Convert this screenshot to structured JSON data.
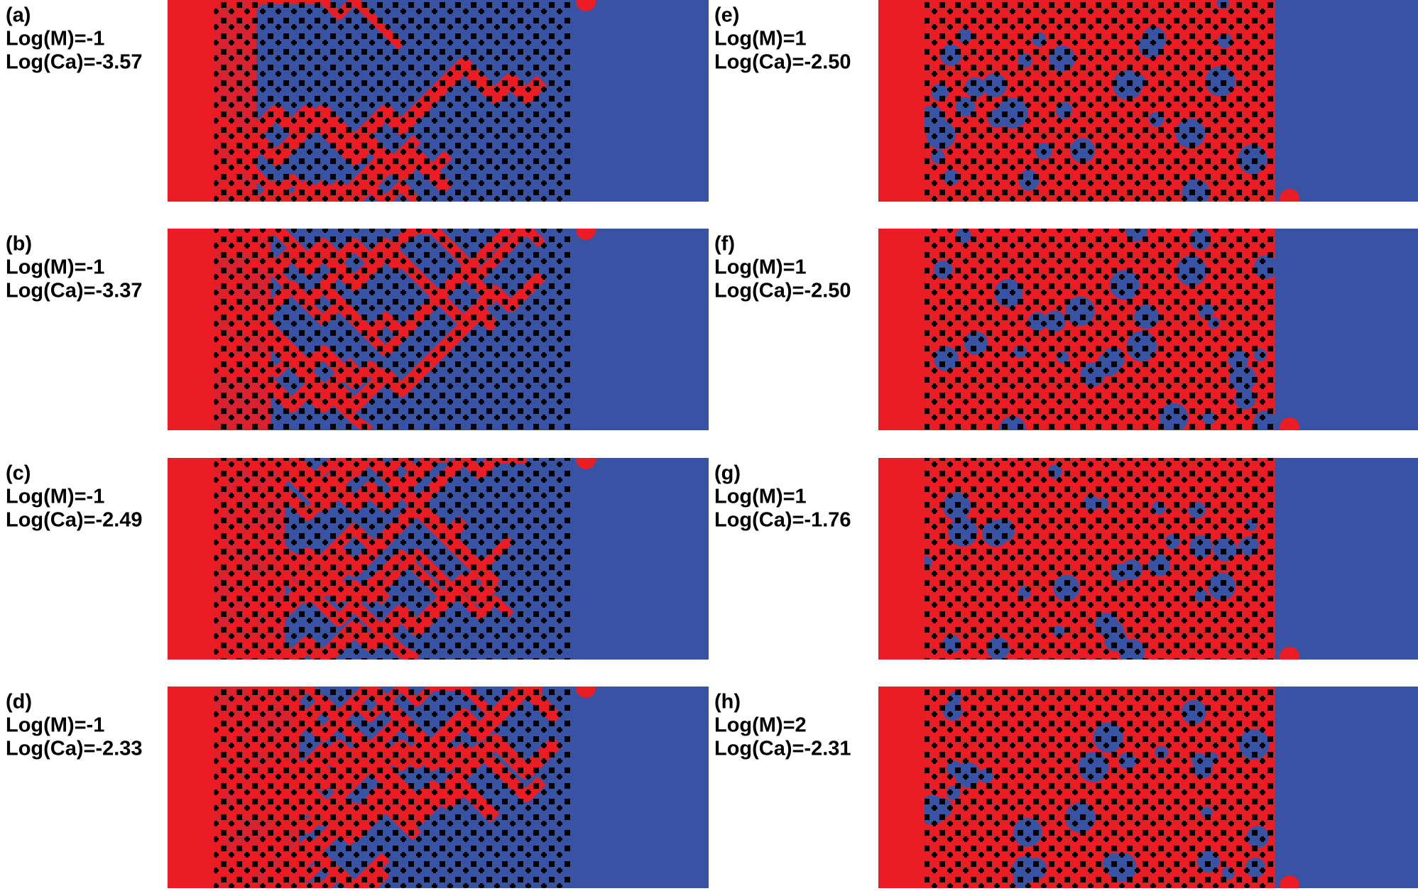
{
  "panels": [
    {
      "label": "(a)",
      "mobility": "Log(M)=-1",
      "capillary": "Log(Ca)=-3.57"
    },
    {
      "label": "(b)",
      "mobility": "Log(M)=-1",
      "capillary": "Log(Ca)=-3.37"
    },
    {
      "label": "(c)",
      "mobility": "Log(M)=-1",
      "capillary": "Log(Ca)=-2.49"
    },
    {
      "label": "(d)",
      "mobility": "Log(M)=-1",
      "capillary": "Log(Ca)=-2.33"
    },
    {
      "label": "(e)",
      "mobility": "Log(M)=1",
      "capillary": "Log(Ca)=-2.50"
    },
    {
      "label": "(f)",
      "mobility": "Log(M)=1",
      "capillary": "Log(Ca)=-2.50"
    },
    {
      "label": "(g)",
      "mobility": "Log(M)=1",
      "capillary": "Log(Ca)=-1.76"
    },
    {
      "label": "(h)",
      "mobility": "Log(M)=2",
      "capillary": "Log(Ca)=-2.31"
    }
  ]
}
